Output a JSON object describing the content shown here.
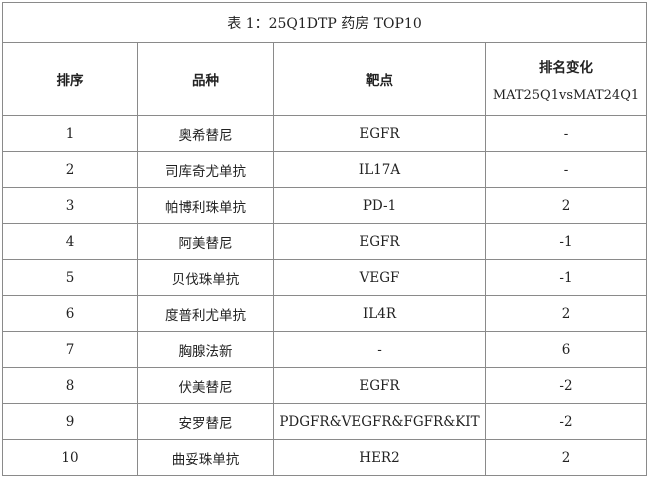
{
  "title": "表 1：25Q1DTP 药房 TOP10",
  "headers": {
    "rank": "排序",
    "variety": "品种",
    "target": "靶点",
    "change": "排名变化",
    "change_sub": "MAT25Q1vsMAT24Q1"
  },
  "rows": [
    {
      "rank": "1",
      "variety": "奥希替尼",
      "target": "EGFR",
      "change": "-"
    },
    {
      "rank": "2",
      "variety": "司库奇尤单抗",
      "target": "IL17A",
      "change": "-"
    },
    {
      "rank": "3",
      "variety": "帕博利珠单抗",
      "target": "PD-1",
      "change": "2"
    },
    {
      "rank": "4",
      "variety": "阿美替尼",
      "target": "EGFR",
      "change": "-1"
    },
    {
      "rank": "5",
      "variety": "贝伐珠单抗",
      "target": "VEGF",
      "change": "-1"
    },
    {
      "rank": "6",
      "variety": "度普利尤单抗",
      "target": "IL4R",
      "change": "2"
    },
    {
      "rank": "7",
      "variety": "胸腺法新",
      "target": "-",
      "change": "6"
    },
    {
      "rank": "8",
      "variety": "伏美替尼",
      "target": "EGFR",
      "change": "-2"
    },
    {
      "rank": "9",
      "variety": "安罗替尼",
      "target": "PDGFR&VEGFR&FGFR&KIT",
      "change": "-2"
    },
    {
      "rank": "10",
      "variety": "曲妥珠单抗",
      "target": "HER2",
      "change": "2"
    }
  ]
}
